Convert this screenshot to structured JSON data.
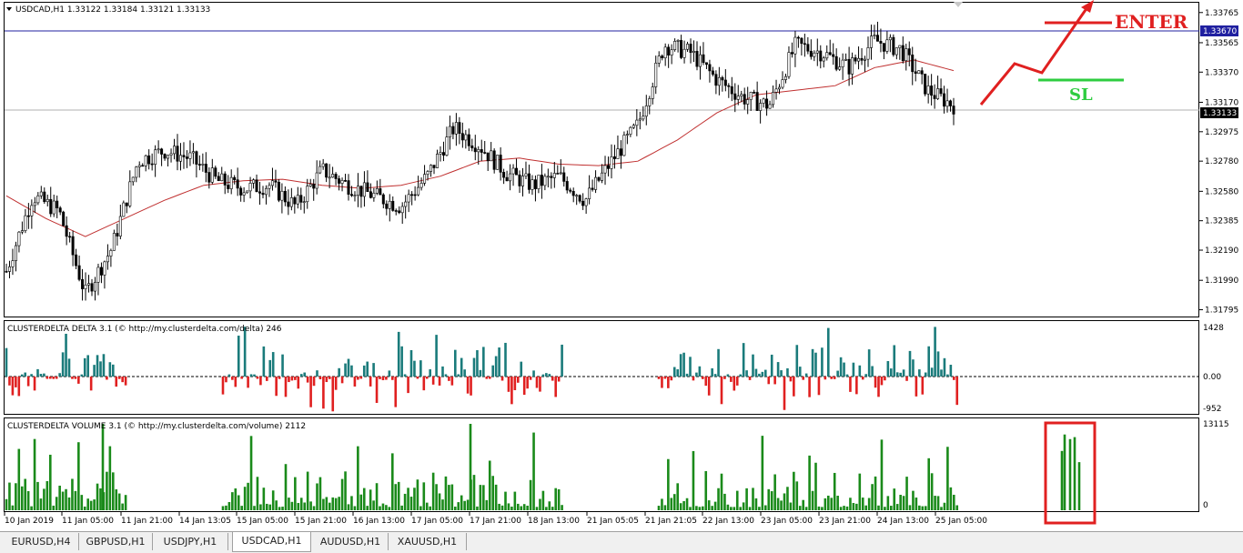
{
  "main_panel": {
    "label": "USDCAD,H1  1.33122 1.33184 1.33121 1.33133",
    "y_ticks": [
      "1.33765",
      "1.33565",
      "1.33370",
      "1.33170",
      "1.32975",
      "1.32780",
      "1.32580",
      "1.32385",
      "1.32190",
      "1.31990",
      "1.31795"
    ],
    "price_line_label": "1.33670",
    "current_price_label": "1.33133"
  },
  "delta_panel": {
    "label": "CLUSTERDELTA DELTA 3.1 (© http://my.clusterdelta.com/delta) 246",
    "y_ticks": [
      "1428",
      "0.00",
      "-952"
    ]
  },
  "volume_panel": {
    "label": "CLUSTERDELTA VOLUME 3.1 (© http://my.clusterdelta.com/volume) 2112",
    "y_ticks": [
      "13115",
      "0"
    ]
  },
  "annotations": {
    "enter": "ENTER",
    "sl": "SL"
  },
  "x_ticks": [
    "10 Jan 2019",
    "11 Jan 05:00",
    "11 Jan 21:00",
    "14 Jan 13:05",
    "15 Jan 05:00",
    "15 Jan 21:00",
    "16 Jan 13:00",
    "17 Jan 05:00",
    "17 Jan 21:00",
    "18 Jan 13:00",
    "21 Jan 05:05",
    "21 Jan 21:05",
    "22 Jan 13:00",
    "23 Jan 05:00",
    "23 Jan 21:00",
    "24 Jan 13:00",
    "25 Jan 05:00"
  ],
  "tabs": [
    "EURUSD,H4",
    "GBPUSD,H1",
    "USDJPY,H1",
    "USDCAD,H1",
    "AUDUSD,H1",
    "XAUUSD,H1"
  ],
  "active_tab": "USDCAD,H1",
  "colors": {
    "bull_delta": "#1a7b7b",
    "bear_delta": "#e02020",
    "volume": "#1a8a1a",
    "ma": "#c03030",
    "enter": "#e02020",
    "sl": "#2ecc40",
    "hline": "#2020a0"
  },
  "chart_data": {
    "type": "candlestick",
    "symbol": "USDCAD",
    "timeframe": "H1",
    "ylim": [
      1.3175,
      1.3383
    ],
    "anchor_prices": [
      1.3205,
      1.3255,
      1.3245,
      1.319,
      1.322,
      1.3278,
      1.3285,
      1.328,
      1.3265,
      1.326,
      1.3262,
      1.3248,
      1.3272,
      1.3262,
      1.3255,
      1.3248,
      1.3268,
      1.33,
      1.3288,
      1.327,
      1.3262,
      1.3268,
      1.3252,
      1.3278,
      1.3302,
      1.3355,
      1.335,
      1.3332,
      1.332,
      1.3315,
      1.3355,
      1.335,
      1.334,
      1.3358,
      1.3352,
      1.3325,
      1.3315
    ],
    "ma_anchor_prices": [
      1.3255,
      1.324,
      1.3228,
      1.324,
      1.3252,
      1.3262,
      1.3265,
      1.3266,
      1.3262,
      1.326,
      1.3262,
      1.3268,
      1.3278,
      1.328,
      1.3276,
      1.3275,
      1.3278,
      1.3292,
      1.331,
      1.3322,
      1.3325,
      1.3328,
      1.334,
      1.3345,
      1.3338
    ],
    "delta_range": [
      -952,
      1428
    ],
    "volume_range": [
      0,
      13115
    ],
    "volume_peak": 13115,
    "delta_peak": 1428
  }
}
